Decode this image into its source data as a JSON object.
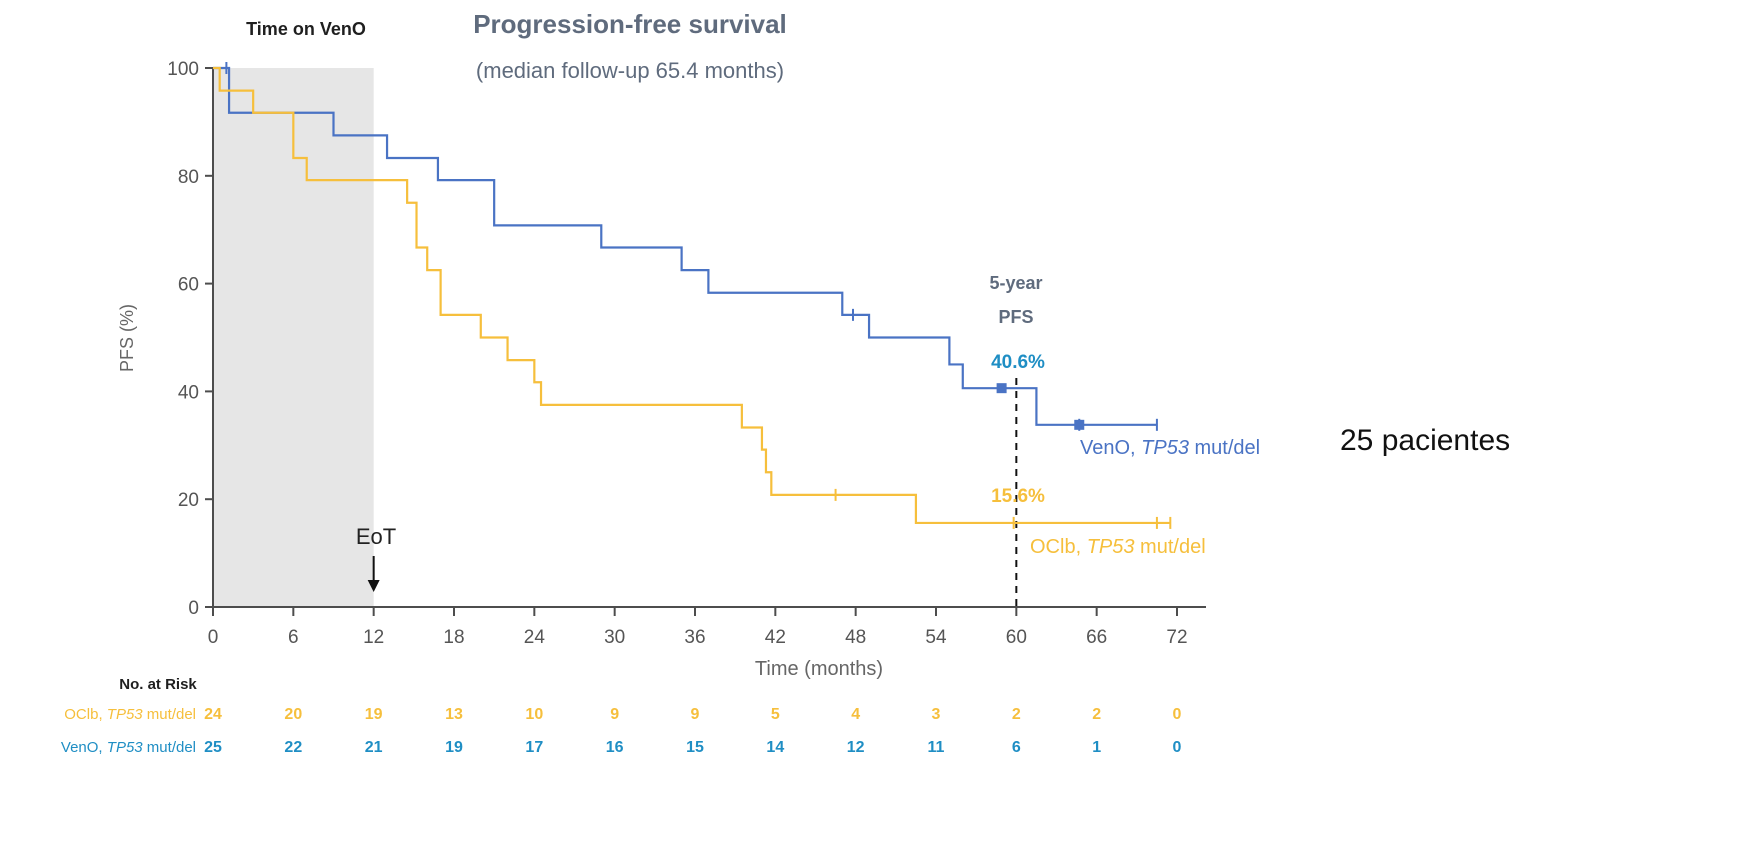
{
  "chart_data": {
    "type": "line",
    "title": "Progression-free survival",
    "subtitle": "(median follow-up 65.4 months)",
    "xlabel": "Time (months)",
    "ylabel": "PFS (%)",
    "xlim": [
      0,
      72
    ],
    "ylim": [
      0,
      100
    ],
    "x_ticks": [
      0,
      6,
      12,
      18,
      24,
      30,
      36,
      42,
      48,
      54,
      60,
      66,
      72
    ],
    "y_ticks": [
      0,
      20,
      40,
      60,
      80,
      100
    ],
    "shaded_region": {
      "label": "Time on VenO",
      "x_start": 0,
      "x_end": 12
    },
    "eot_marker": {
      "label": "EoT",
      "x": 12
    },
    "reference_line": {
      "x": 60,
      "label_line1": "5-year",
      "label_line2": "PFS",
      "style": "dashed"
    },
    "series": [
      {
        "name_prefix": "VenO, ",
        "name_italic": "TP53",
        "name_suffix": " mut/del",
        "color": "#4a73c4",
        "value_label_color": "#1f8ec4",
        "steps": [
          [
            0,
            100
          ],
          [
            1.2,
            91.7
          ],
          [
            9,
            87.5
          ],
          [
            13,
            83.3
          ],
          [
            16.8,
            79.2
          ],
          [
            21,
            70.8
          ],
          [
            29,
            66.7
          ],
          [
            35,
            62.5
          ],
          [
            37,
            58.3
          ],
          [
            47,
            54.2
          ],
          [
            49,
            50
          ],
          [
            55,
            45
          ],
          [
            56,
            40.6
          ],
          [
            61.5,
            33.8
          ]
        ],
        "end_x": 70.5,
        "censor_x": [
          1,
          47.8,
          64.7,
          70.5
        ],
        "five_year_pfs": 40.6,
        "five_year_label": "40.6%"
      },
      {
        "name_prefix": "OClb, ",
        "name_italic": "TP53",
        "name_suffix": " mut/del",
        "color": "#f6bf3c",
        "value_label_color": "#f6bf3c",
        "steps": [
          [
            0,
            100
          ],
          [
            0.5,
            95.8
          ],
          [
            3,
            91.7
          ],
          [
            6,
            83.3
          ],
          [
            7,
            79.2
          ],
          [
            14.5,
            75
          ],
          [
            15.2,
            66.7
          ],
          [
            16,
            62.5
          ],
          [
            17,
            54.2
          ],
          [
            20,
            50
          ],
          [
            22,
            45.8
          ],
          [
            24,
            41.7
          ],
          [
            24.5,
            37.5
          ],
          [
            39.5,
            33.3
          ],
          [
            41,
            29.2
          ],
          [
            41.3,
            25
          ],
          [
            41.7,
            20.8
          ],
          [
            52.5,
            15.6
          ]
        ],
        "end_x": 71.5,
        "censor_x": [
          46.5,
          59.8,
          70.5,
          71.5
        ],
        "five_year_pfs": 15.6,
        "five_year_label": "15.6%"
      }
    ],
    "at_risk": {
      "title": "No. at Risk",
      "rows": [
        {
          "label_prefix": "OClb, ",
          "label_italic": "TP53",
          "label_suffix": " mut/del",
          "color": "#f6bf3c",
          "values": [
            24,
            20,
            19,
            13,
            10,
            9,
            9,
            5,
            4,
            3,
            2,
            2,
            0
          ]
        },
        {
          "label_prefix": "VenO, ",
          "label_italic": "TP53",
          "label_suffix": " mut/del",
          "color": "#1f8ec4",
          "values": [
            25,
            22,
            21,
            19,
            17,
            16,
            15,
            14,
            12,
            11,
            6,
            1,
            0
          ]
        }
      ]
    }
  },
  "side_note": "25 pacientes"
}
